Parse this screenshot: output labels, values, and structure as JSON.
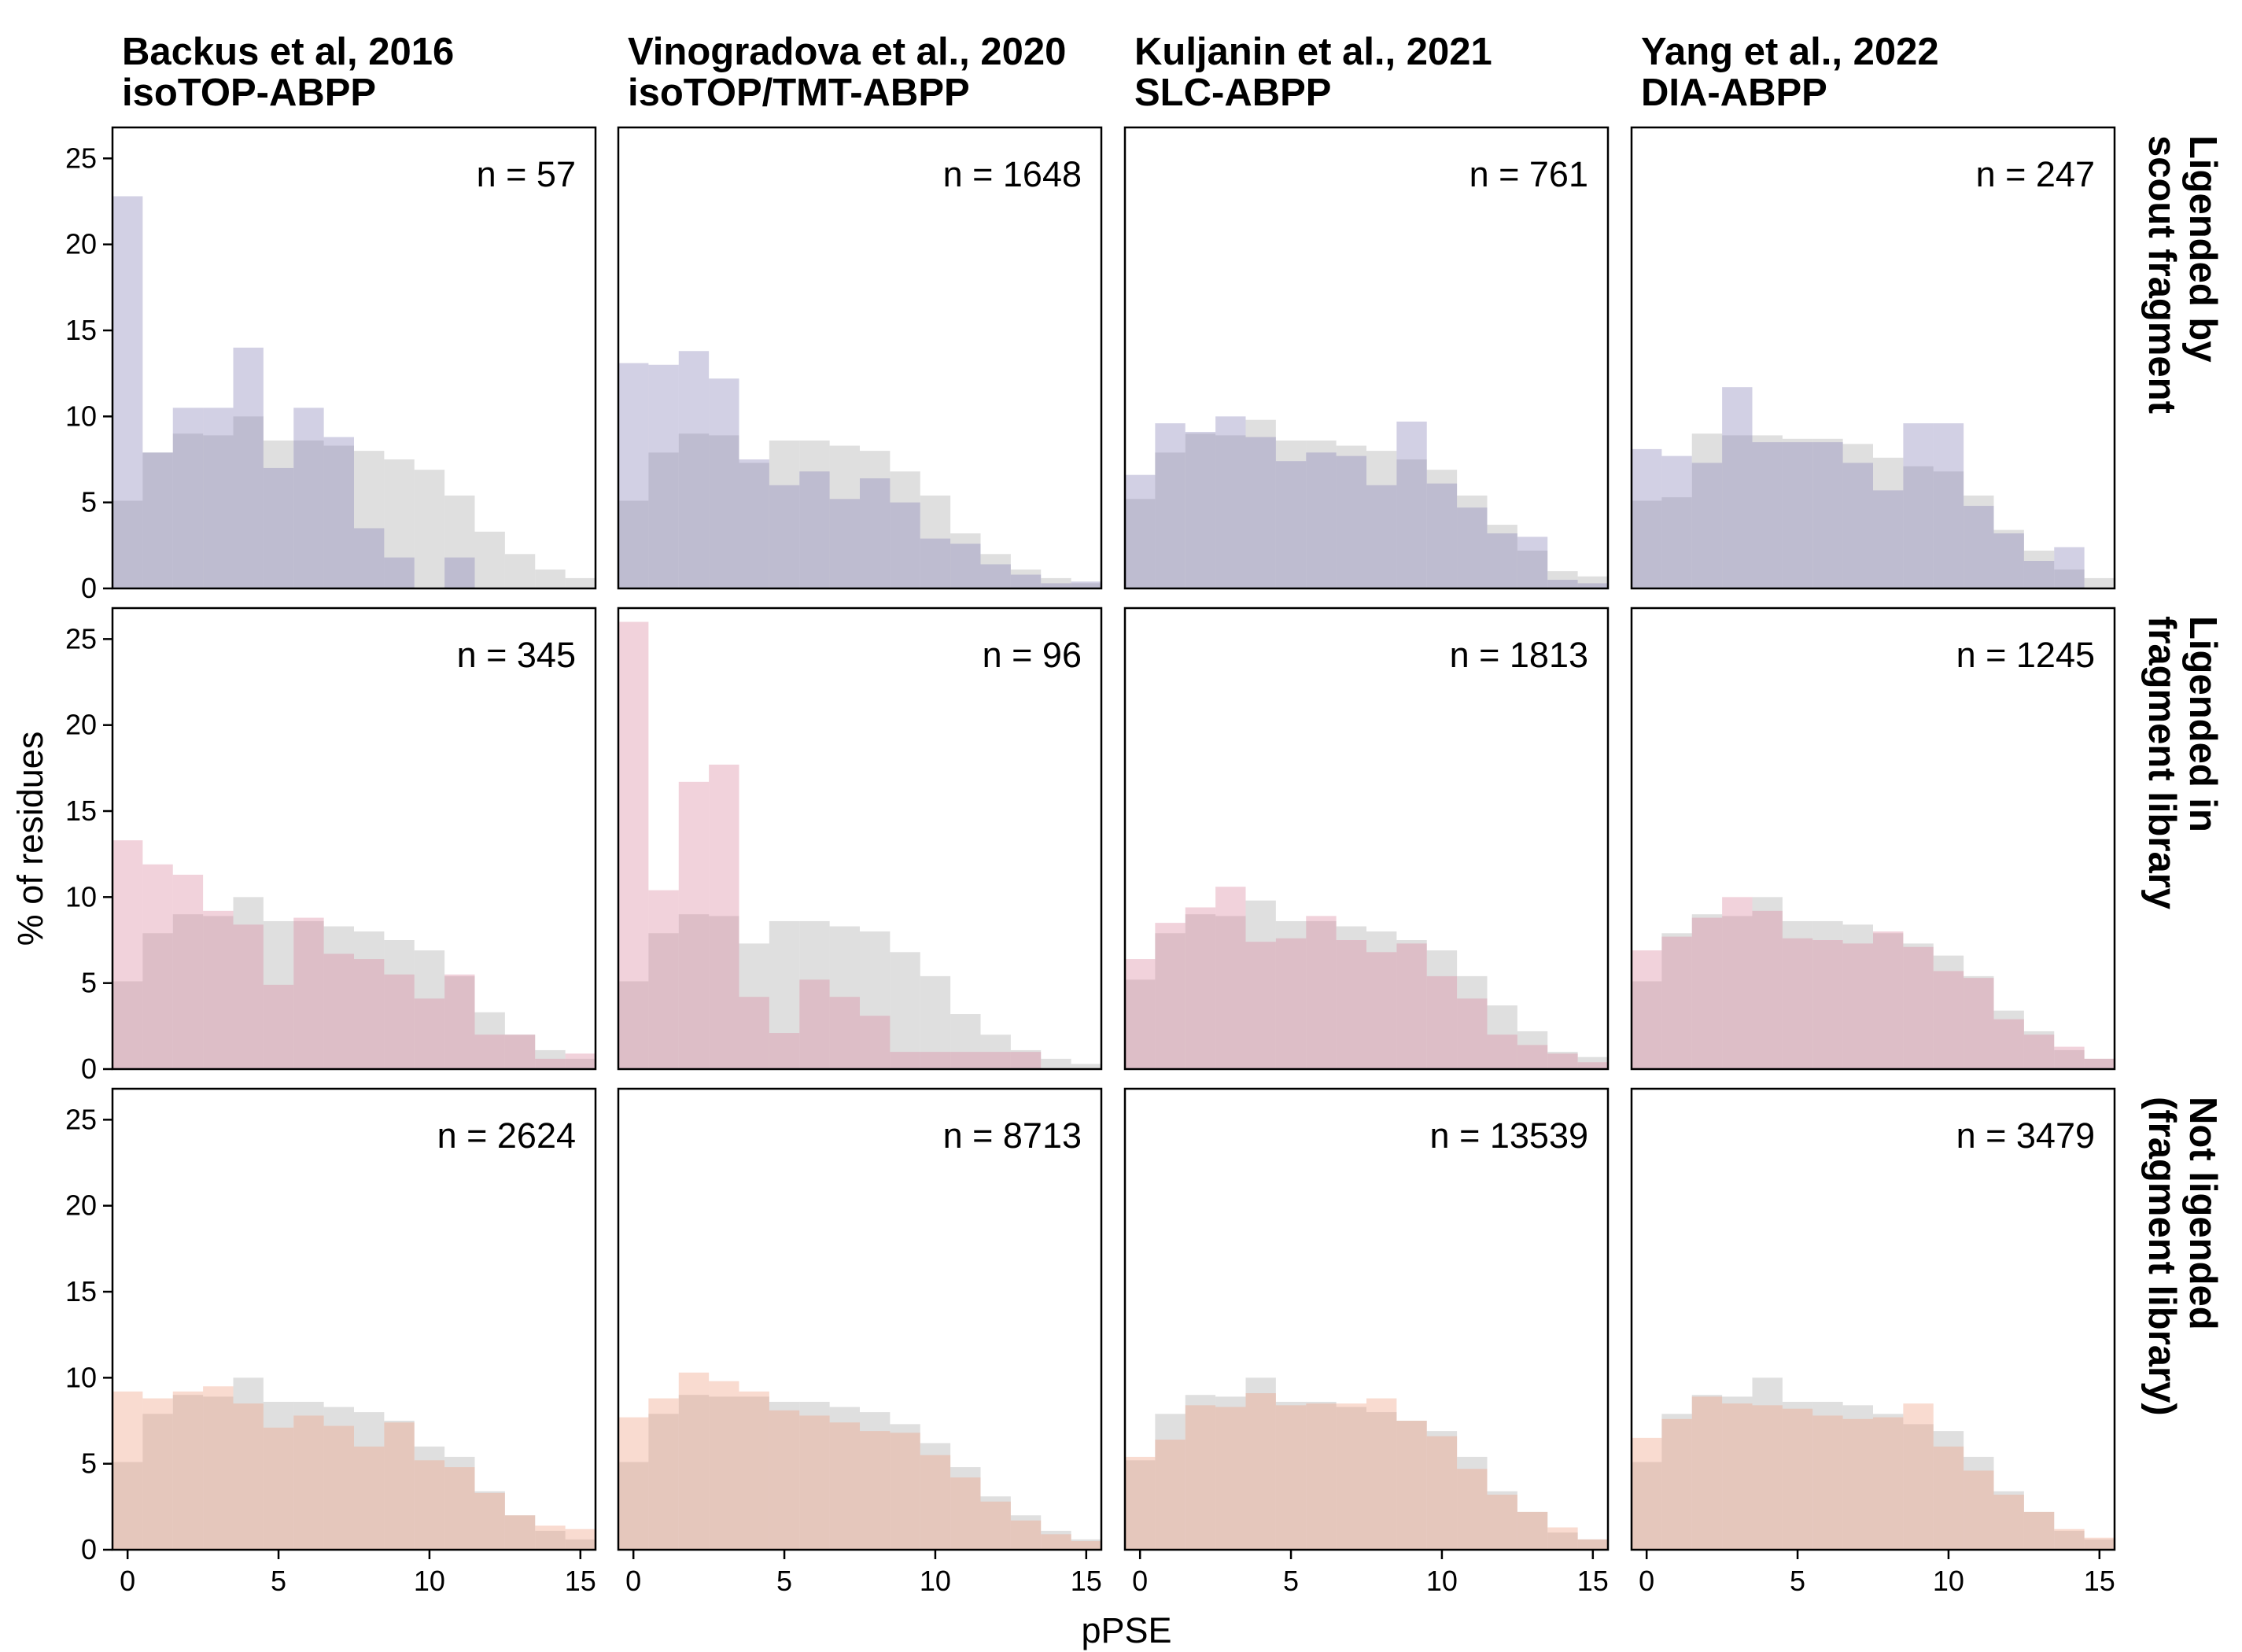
{
  "chart_data": {
    "type": "bar",
    "layout": "facet-grid 3x4 overlaid histograms",
    "x_axis": {
      "label": "pPSE",
      "range": [
        -0.5,
        15.5
      ],
      "ticks": [
        0,
        5,
        10,
        15
      ],
      "bin_width": 1
    },
    "y_axis": {
      "label": "% of residues",
      "range": [
        0,
        26.8
      ],
      "ticks": [
        0,
        5,
        10,
        15,
        20,
        25
      ]
    },
    "grid": false,
    "column_titles": [
      [
        "Backus et al, 2016",
        "isoTOP-ABPP"
      ],
      [
        "Vinogradova et al., 2020",
        "isoTOP/TMT-ABPP"
      ],
      [
        "Kuljanin et al., 2021",
        "SLC-ABPP"
      ],
      [
        "Yang et al., 2022",
        "DIA-ABPP"
      ]
    ],
    "row_titles": [
      [
        "Ligended by",
        "scout fragment"
      ],
      [
        "Ligended in",
        "fragment library"
      ],
      [
        "Not ligended",
        "(fragment library)"
      ]
    ],
    "row_colors": [
      "#8a84b8",
      "#d98aa0",
      "#f0a184"
    ],
    "reference_color": "#bfbfbf",
    "reference_profile": [
      5.1,
      7.9,
      9.0,
      8.9,
      10.0,
      8.6,
      8.6,
      8.3,
      8.0,
      7.5,
      6.9,
      5.4,
      3.3,
      2.0,
      1.1,
      0.6
    ],
    "panels": [
      [
        {
          "n_label": "n = 57",
          "reference": [
            5.1,
            7.9,
            9.0,
            8.9,
            10.0,
            8.6,
            8.6,
            8.3,
            8.0,
            7.5,
            6.9,
            5.4,
            3.3,
            2.0,
            1.1,
            0.6
          ],
          "values": [
            22.8,
            7.9,
            10.5,
            10.5,
            14.0,
            7.0,
            10.5,
            8.8,
            3.5,
            1.8,
            0.0,
            1.8,
            0.0,
            0.0,
            0.0,
            0.0
          ]
        },
        {
          "n_label": "n = 1648",
          "reference": [
            5.1,
            7.9,
            9.0,
            8.9,
            7.3,
            8.6,
            8.6,
            8.3,
            8.0,
            6.8,
            5.4,
            3.2,
            2.0,
            1.1,
            0.6,
            0.3
          ],
          "values": [
            13.1,
            13.0,
            13.8,
            12.2,
            7.5,
            6.0,
            6.8,
            5.2,
            6.4,
            5.0,
            2.9,
            2.6,
            1.4,
            0.8,
            0.3,
            0.4
          ]
        },
        {
          "n_label": "n = 761",
          "reference": [
            5.2,
            7.9,
            9.0,
            8.9,
            9.8,
            8.6,
            8.6,
            8.3,
            8.0,
            7.5,
            6.9,
            5.4,
            3.7,
            2.2,
            1.0,
            0.7
          ],
          "values": [
            6.6,
            9.6,
            9.1,
            10.0,
            8.8,
            7.4,
            7.9,
            7.7,
            6.0,
            9.7,
            6.1,
            4.7,
            3.2,
            3.0,
            0.5,
            0.3
          ]
        },
        {
          "n_label": "n = 247",
          "reference": [
            5.1,
            5.3,
            9.0,
            8.9,
            8.9,
            8.7,
            8.7,
            8.4,
            7.6,
            7.1,
            6.8,
            5.4,
            3.4,
            2.2,
            1.1,
            0.6
          ],
          "values": [
            8.1,
            7.7,
            7.3,
            11.7,
            8.5,
            8.5,
            8.5,
            7.3,
            5.7,
            9.6,
            9.6,
            4.8,
            3.2,
            1.6,
            2.4,
            0.0
          ]
        }
      ],
      [
        {
          "n_label": "n = 345",
          "reference": [
            5.1,
            7.9,
            9.0,
            8.9,
            10.0,
            8.6,
            8.6,
            8.3,
            8.0,
            7.5,
            6.9,
            5.4,
            3.3,
            2.0,
            1.1,
            0.6
          ],
          "values": [
            13.3,
            11.9,
            11.3,
            9.2,
            8.4,
            4.9,
            8.8,
            6.7,
            6.4,
            5.5,
            4.1,
            5.5,
            2.0,
            2.0,
            0.6,
            0.9
          ]
        },
        {
          "n_label": "n = 96",
          "reference": [
            5.1,
            7.9,
            9.0,
            8.9,
            7.3,
            8.6,
            8.6,
            8.3,
            8.0,
            6.8,
            5.4,
            3.2,
            2.0,
            1.1,
            0.6,
            0.3
          ],
          "values": [
            26.0,
            10.4,
            16.7,
            17.7,
            4.2,
            2.1,
            5.2,
            4.2,
            3.1,
            1.0,
            1.0,
            1.0,
            1.0,
            1.0,
            0.0,
            0.0
          ]
        },
        {
          "n_label": "n = 1813",
          "reference": [
            5.2,
            7.9,
            9.0,
            8.9,
            9.8,
            8.6,
            8.6,
            8.3,
            8.0,
            7.5,
            6.9,
            5.4,
            3.7,
            2.2,
            1.0,
            0.7
          ],
          "values": [
            6.4,
            8.5,
            9.4,
            10.6,
            7.4,
            7.6,
            8.9,
            7.5,
            6.8,
            7.3,
            5.4,
            4.1,
            2.0,
            1.4,
            0.9,
            0.4
          ]
        },
        {
          "n_label": "n = 1245",
          "reference": [
            5.1,
            7.9,
            9.0,
            8.9,
            10.0,
            8.6,
            8.6,
            8.4,
            7.9,
            7.3,
            6.6,
            5.4,
            3.4,
            2.2,
            1.1,
            0.6
          ],
          "values": [
            6.9,
            7.7,
            8.8,
            10.0,
            9.2,
            7.6,
            7.5,
            7.3,
            8.0,
            7.1,
            5.7,
            5.3,
            2.9,
            2.0,
            1.3,
            0.6
          ]
        }
      ],
      [
        {
          "n_label": "n = 2624",
          "reference": [
            5.1,
            7.9,
            9.0,
            8.9,
            10.0,
            8.6,
            8.6,
            8.3,
            8.0,
            7.5,
            6.0,
            5.4,
            3.4,
            2.0,
            1.1,
            0.6
          ],
          "values": [
            9.2,
            8.8,
            9.2,
            9.5,
            8.5,
            7.1,
            7.8,
            7.2,
            6.0,
            7.4,
            5.2,
            4.8,
            3.3,
            2.0,
            1.4,
            1.2
          ]
        },
        {
          "n_label": "n = 8713",
          "reference": [
            5.1,
            7.9,
            9.0,
            8.9,
            8.9,
            8.6,
            8.6,
            8.3,
            8.0,
            7.3,
            6.2,
            4.8,
            3.1,
            2.0,
            1.1,
            0.6
          ],
          "values": [
            7.7,
            8.8,
            10.3,
            9.8,
            9.2,
            8.1,
            7.8,
            7.4,
            6.9,
            6.8,
            5.5,
            4.2,
            2.8,
            1.7,
            0.9,
            0.5
          ]
        },
        {
          "n_label": "n = 13539",
          "reference": [
            5.2,
            7.9,
            9.0,
            8.9,
            10.0,
            8.6,
            8.6,
            8.3,
            8.0,
            7.5,
            6.9,
            5.4,
            3.4,
            2.2,
            1.0,
            0.6
          ],
          "values": [
            5.4,
            6.4,
            8.4,
            8.3,
            9.1,
            8.4,
            8.5,
            8.5,
            8.8,
            7.5,
            6.6,
            4.7,
            3.2,
            2.2,
            1.3,
            0.6
          ]
        },
        {
          "n_label": "n = 3479",
          "reference": [
            5.1,
            7.9,
            9.0,
            8.9,
            10.0,
            8.6,
            8.6,
            8.4,
            7.9,
            7.3,
            6.9,
            5.4,
            3.4,
            2.2,
            1.1,
            0.6
          ],
          "values": [
            6.5,
            7.6,
            8.9,
            8.5,
            8.4,
            8.2,
            7.8,
            7.6,
            7.7,
            8.5,
            6.0,
            4.6,
            3.2,
            2.2,
            1.2,
            0.7
          ]
        }
      ]
    ]
  }
}
